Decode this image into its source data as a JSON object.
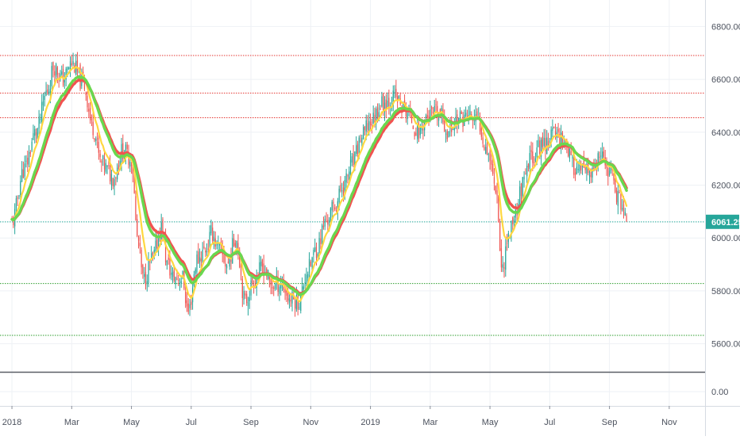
{
  "chart_data": {
    "type": "candlestick",
    "price_pane": {
      "ylim": [
        5500,
        6900
      ],
      "y_ticks": [
        5600,
        5800,
        6000,
        6200,
        6400,
        6600,
        6800
      ],
      "y_tick_labels": [
        "5600.00",
        "5800.00",
        "6000.00",
        "6200.00",
        "6400.00",
        "6600.00",
        "6800.00"
      ],
      "last_price": 6061.25,
      "last_price_label": "6061.25",
      "grid": true,
      "horizontal_levels": [
        {
          "value": 6690,
          "color": "#e53935"
        },
        {
          "value": 6548,
          "color": "#e53935"
        },
        {
          "value": 6455,
          "color": "#e53935"
        },
        {
          "value": 6061,
          "color": "#26a69a"
        },
        {
          "value": 5828,
          "color": "#2e9e2e"
        },
        {
          "value": 5632,
          "color": "#2e9e2e"
        }
      ]
    },
    "lower_pane": {
      "y_ticks": [
        0
      ],
      "y_tick_labels": [
        "0.00"
      ]
    },
    "x_axis": {
      "tick_labels": [
        "2018",
        "Mar",
        "May",
        "Jul",
        "Sep",
        "Nov",
        "2019",
        "Mar",
        "May",
        "Jul",
        "Sep",
        "Nov"
      ],
      "tick_months": [
        0,
        2,
        4,
        6,
        8,
        10,
        12,
        14,
        16,
        18,
        20,
        22
      ],
      "range_months": [
        -0.4,
        23.2
      ],
      "data_end_month": 20.6
    },
    "price_anchors": [
      [
        0.0,
        6060
      ],
      [
        0.4,
        6260
      ],
      [
        0.8,
        6400
      ],
      [
        1.2,
        6560
      ],
      [
        1.4,
        6650
      ],
      [
        1.7,
        6600
      ],
      [
        2.0,
        6660
      ],
      [
        2.4,
        6580
      ],
      [
        2.7,
        6420
      ],
      [
        3.0,
        6280
      ],
      [
        3.4,
        6230
      ],
      [
        3.7,
        6330
      ],
      [
        4.0,
        6300
      ],
      [
        4.2,
        6000
      ],
      [
        4.4,
        5840
      ],
      [
        4.7,
        5920
      ],
      [
        5.0,
        6040
      ],
      [
        5.2,
        5900
      ],
      [
        5.4,
        5850
      ],
      [
        5.7,
        5850
      ],
      [
        5.9,
        5720
      ],
      [
        6.2,
        5920
      ],
      [
        6.5,
        5960
      ],
      [
        6.7,
        6020
      ],
      [
        6.9,
        5960
      ],
      [
        7.2,
        5900
      ],
      [
        7.5,
        6000
      ],
      [
        7.8,
        5760
      ],
      [
        8.1,
        5840
      ],
      [
        8.4,
        5890
      ],
      [
        8.7,
        5820
      ],
      [
        9.0,
        5830
      ],
      [
        9.3,
        5770
      ],
      [
        9.6,
        5760
      ],
      [
        9.9,
        5880
      ],
      [
        10.2,
        5960
      ],
      [
        10.5,
        6060
      ],
      [
        10.8,
        6120
      ],
      [
        11.1,
        6200
      ],
      [
        11.4,
        6280
      ],
      [
        11.7,
        6380
      ],
      [
        12.0,
        6440
      ],
      [
        12.4,
        6510
      ],
      [
        12.8,
        6530
      ],
      [
        13.2,
        6480
      ],
      [
        13.6,
        6400
      ],
      [
        13.9,
        6460
      ],
      [
        14.3,
        6470
      ],
      [
        14.6,
        6400
      ],
      [
        14.9,
        6450
      ],
      [
        15.3,
        6460
      ],
      [
        15.6,
        6440
      ],
      [
        15.9,
        6340
      ],
      [
        16.2,
        6200
      ],
      [
        16.4,
        5880
      ],
      [
        16.6,
        6000
      ],
      [
        16.8,
        6080
      ],
      [
        17.1,
        6200
      ],
      [
        17.4,
        6310
      ],
      [
        17.8,
        6360
      ],
      [
        18.2,
        6400
      ],
      [
        18.5,
        6370
      ],
      [
        18.8,
        6270
      ],
      [
        19.1,
        6250
      ],
      [
        19.4,
        6240
      ],
      [
        19.7,
        6300
      ],
      [
        19.9,
        6270
      ],
      [
        20.1,
        6230
      ],
      [
        20.3,
        6150
      ],
      [
        20.6,
        6061
      ]
    ],
    "moving_averages": [
      {
        "color": "#ffd740",
        "period_bars": 8
      },
      {
        "color": "#f05350",
        "period_bars": 23
      },
      {
        "color": "#69d84f",
        "period_bars": 20
      }
    ]
  }
}
